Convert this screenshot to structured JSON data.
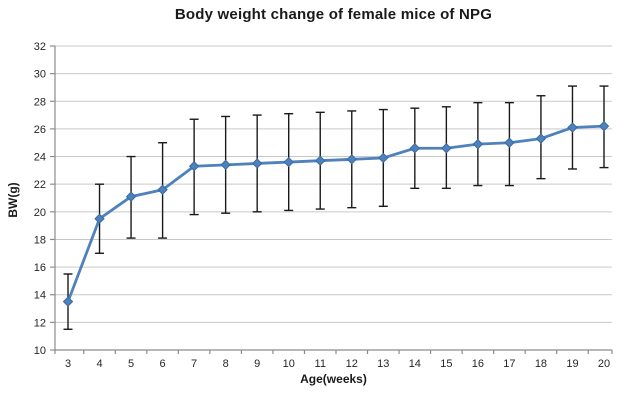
{
  "chart_data": {
    "type": "line",
    "title": "Body weight change of female mice of NPG",
    "xlabel": "Age(weeks)",
    "ylabel": "BW(g)",
    "categories": [
      3,
      4,
      5,
      6,
      7,
      8,
      9,
      10,
      11,
      12,
      13,
      14,
      15,
      16,
      17,
      18,
      19,
      20
    ],
    "series": [
      {
        "values": [
          13.5,
          19.5,
          21.1,
          21.6,
          23.3,
          23.4,
          23.5,
          23.6,
          23.7,
          23.8,
          23.9,
          24.6,
          24.6,
          24.9,
          25.0,
          25.3,
          26.1,
          26.2
        ],
        "error_low": [
          11.5,
          17.0,
          18.1,
          18.1,
          19.8,
          19.9,
          20.0,
          20.1,
          20.2,
          20.3,
          20.4,
          21.7,
          21.7,
          21.9,
          21.9,
          22.4,
          23.1,
          23.2
        ],
        "error_high": [
          15.5,
          22.0,
          24.0,
          25.0,
          26.7,
          26.9,
          27.0,
          27.1,
          27.2,
          27.3,
          27.4,
          27.5,
          27.6,
          27.9,
          27.9,
          28.4,
          29.1,
          29.1
        ],
        "color": "#4F81BD",
        "marker": "diamond"
      }
    ],
    "ylim": [
      10,
      32
    ],
    "ytick_step": 2,
    "grid": true,
    "legend": "none",
    "error_bar_color": "#1a1a1a",
    "gridline_color": "#c9c9c9",
    "axis_color": "#8c8c8c",
    "tick_label_color": "#262626",
    "background_color": "#ffffff"
  }
}
